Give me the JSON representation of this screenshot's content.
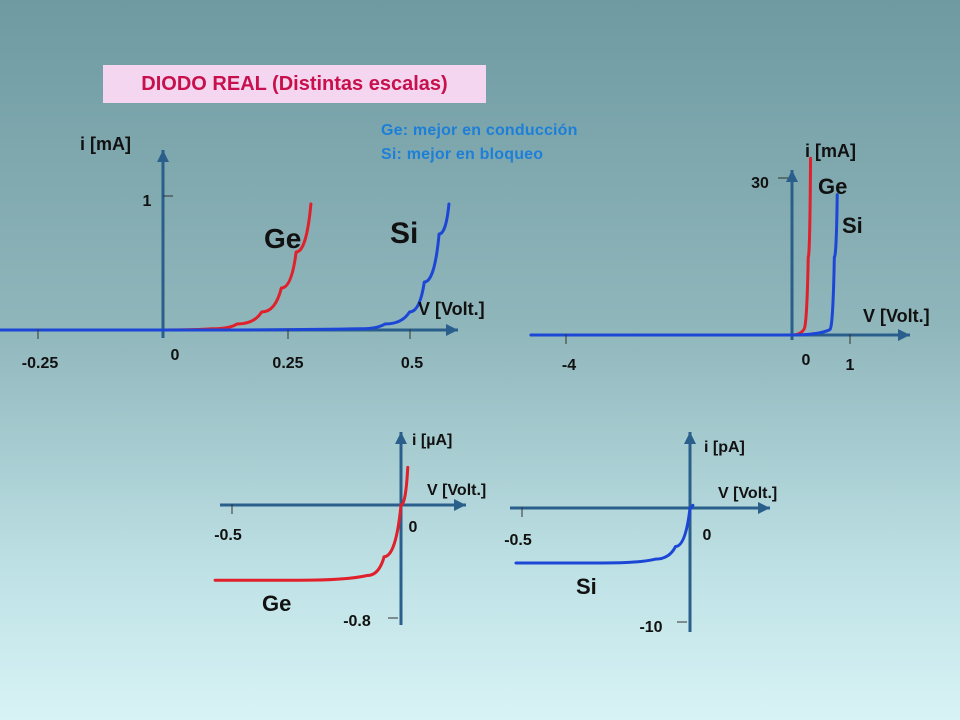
{
  "title": "DIODO REAL (Distintas escalas)",
  "notes": [
    "Ge: mejor en conducción",
    "Si: mejor en  bloqueo"
  ],
  "colors": {
    "ge": "#e0202a",
    "si": "#1c47d6",
    "axis": "#2a5f8c",
    "title_text": "#c8104c",
    "title_bg": "#f4d6f0",
    "note": "#1d7fd8"
  },
  "chart_data": [
    {
      "type": "line",
      "name": "forward-small-scale",
      "ylabel": "i [mA]",
      "xlabel": "V [Volt.]",
      "x_ticks": [
        "-0.25",
        "0",
        "0.25",
        "0.5"
      ],
      "y_ticks": [
        "1"
      ],
      "series_labels": [
        "Ge",
        "Si"
      ],
      "series": [
        {
          "name": "Ge",
          "x": [
            -0.35,
            0.0,
            0.1,
            0.15,
            0.2,
            0.24,
            0.27,
            0.3
          ],
          "y": [
            0,
            0,
            0.01,
            0.05,
            0.15,
            0.35,
            0.65,
            1.05
          ]
        },
        {
          "name": "Si",
          "x": [
            -0.35,
            0.0,
            0.4,
            0.45,
            0.5,
            0.53,
            0.56,
            0.58
          ],
          "y": [
            0,
            0,
            0.01,
            0.05,
            0.15,
            0.4,
            0.8,
            1.05
          ]
        }
      ]
    },
    {
      "type": "line",
      "name": "forward-large-scale",
      "ylabel": "i [mA]",
      "xlabel": "V [Volt.]",
      "x_ticks": [
        "-4",
        "0",
        "1"
      ],
      "y_ticks": [
        "30"
      ],
      "series_labels": [
        "Ge",
        "Si"
      ],
      "series": [
        {
          "name": "Ge",
          "x": [
            -4.5,
            0.0,
            0.2,
            0.28,
            0.32
          ],
          "y": [
            0,
            0,
            1,
            15,
            34
          ]
        },
        {
          "name": "Si",
          "x": [
            -4.5,
            0.0,
            0.65,
            0.73,
            0.78
          ],
          "y": [
            0,
            0,
            1,
            15,
            27
          ]
        }
      ]
    },
    {
      "type": "line",
      "name": "reverse-ge",
      "ylabel": "i [µA]",
      "xlabel": "V [Volt.]",
      "x_ticks": [
        "-0.5",
        "0"
      ],
      "y_ticks": [
        "-0.8"
      ],
      "series_labels": [
        "Ge"
      ],
      "series": [
        {
          "name": "Ge",
          "x": [
            -0.55,
            -0.3,
            -0.1,
            -0.05,
            0.0,
            0.02
          ],
          "y": [
            -0.8,
            -0.8,
            -0.75,
            -0.55,
            0.0,
            0.4
          ]
        }
      ]
    },
    {
      "type": "line",
      "name": "reverse-si",
      "ylabel": "i [pA]",
      "xlabel": "V [Volt.]",
      "x_ticks": [
        "-0.5",
        "0"
      ],
      "y_ticks": [
        "-10"
      ],
      "series_labels": [
        "Si"
      ],
      "series": [
        {
          "name": "Si",
          "x": [
            -0.6,
            -0.3,
            -0.12,
            -0.05,
            0.0,
            0.01
          ],
          "y": [
            -10,
            -10,
            -9.3,
            -7.0,
            0.0,
            0.5
          ]
        }
      ]
    }
  ]
}
